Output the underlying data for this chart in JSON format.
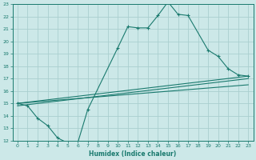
{
  "xlabel": "Humidex (Indice chaleur)",
  "bg_color": "#cce8e8",
  "grid_color": "#aacfcf",
  "line_color": "#1a7a6e",
  "xlim": [
    -0.5,
    23.5
  ],
  "ylim": [
    12,
    23
  ],
  "xticks": [
    0,
    1,
    2,
    3,
    4,
    5,
    6,
    7,
    8,
    9,
    10,
    11,
    12,
    13,
    14,
    15,
    16,
    17,
    18,
    19,
    20,
    21,
    22,
    23
  ],
  "yticks": [
    12,
    13,
    14,
    15,
    16,
    17,
    18,
    19,
    20,
    21,
    22,
    23
  ],
  "line1_x": [
    0,
    1,
    2,
    3,
    4,
    5,
    6,
    7,
    10,
    11,
    12,
    13,
    14,
    15,
    16,
    17,
    19,
    20,
    21,
    22,
    23
  ],
  "line1_y": [
    15,
    14.8,
    13.8,
    13.2,
    12.2,
    11.8,
    11.8,
    14.5,
    19.5,
    21.2,
    21.1,
    21.1,
    22.1,
    23.2,
    22.2,
    22.1,
    19.3,
    18.8,
    17.8,
    17.3,
    17.2
  ],
  "line2_x": [
    0,
    23
  ],
  "line2_y": [
    15.0,
    17.2
  ],
  "line3_x": [
    0,
    23
  ],
  "line3_y": [
    15.0,
    16.5
  ],
  "line4_x": [
    0,
    23
  ],
  "line4_y": [
    14.8,
    17.0
  ]
}
